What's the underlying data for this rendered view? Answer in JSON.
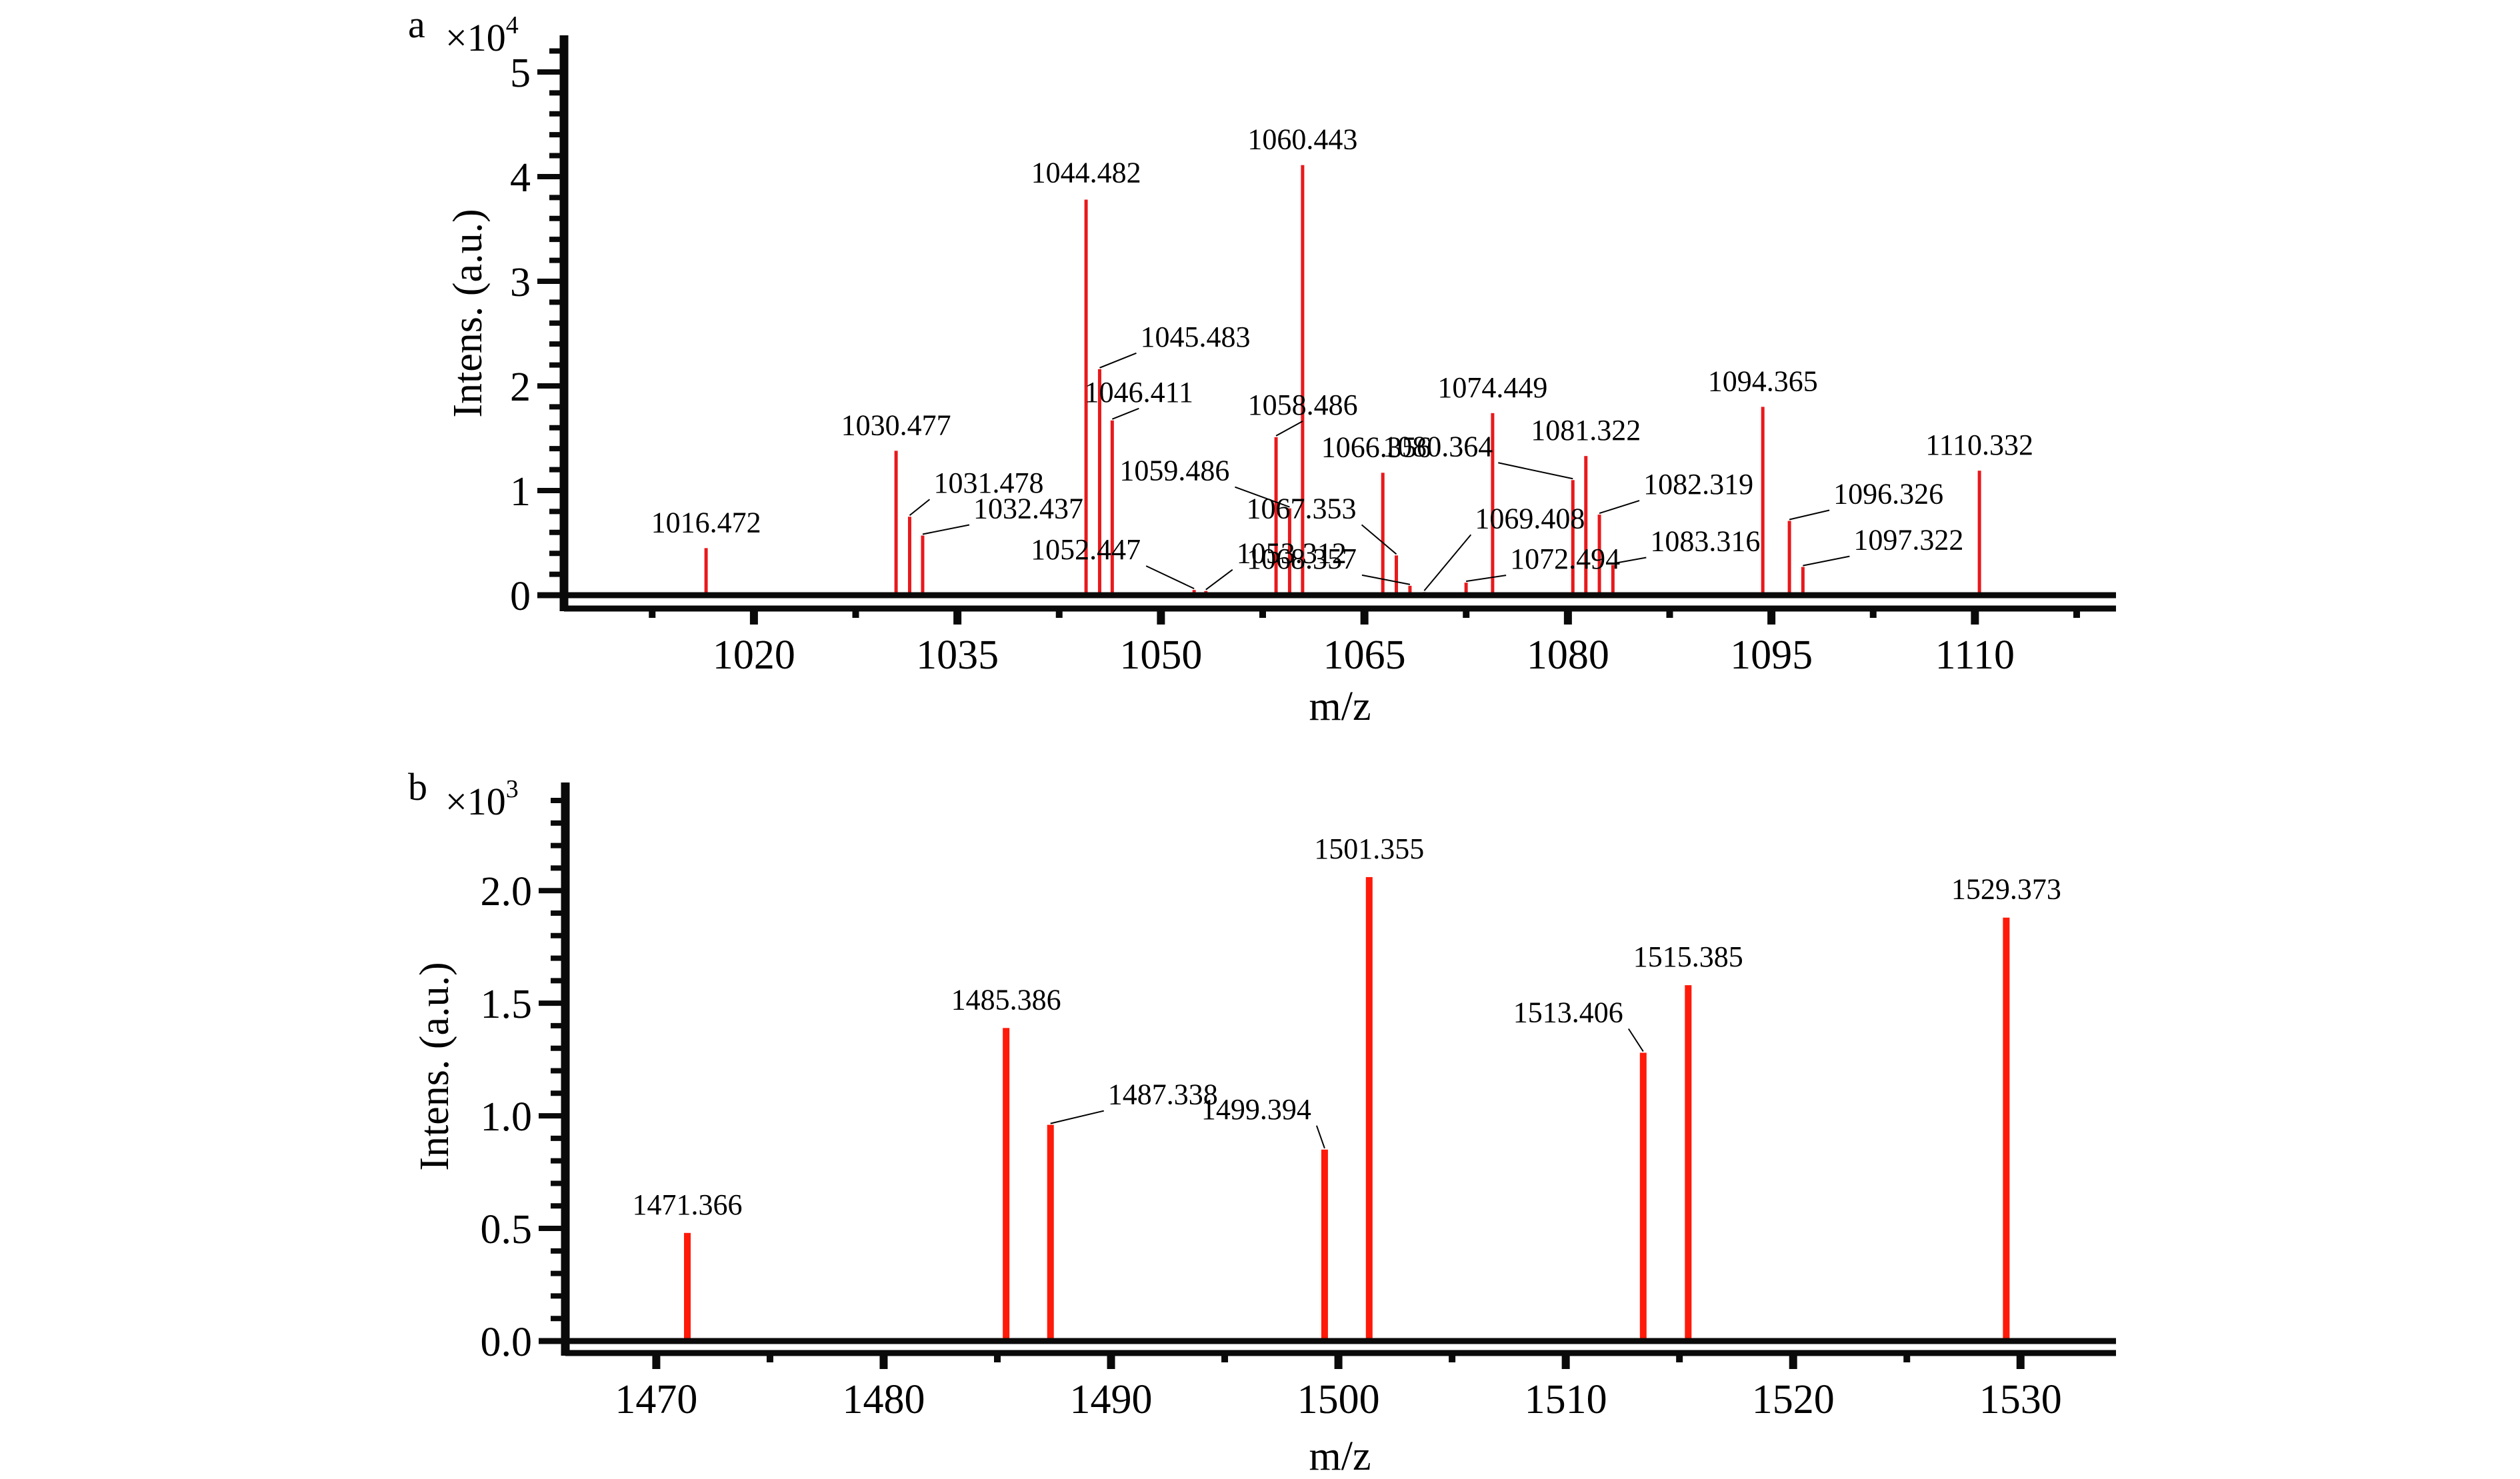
{
  "chart_data": [
    {
      "panel": "a",
      "type": "bar",
      "title": "",
      "xlabel": "m/z",
      "ylabel": "Intens. (a.u.)",
      "y_multiplier": "×10",
      "y_multiplier_exp": "4",
      "xlim": [
        1006,
        1120.4
      ],
      "ylim": [
        0,
        5.35
      ],
      "xticks": [
        1020,
        1035,
        1050,
        1065,
        1080,
        1095,
        1110
      ],
      "xtick_labels": [
        "1020",
        "1035",
        "1050",
        "1065",
        "1080",
        "1095",
        "1110"
      ],
      "x_minor_step": 7.5,
      "yticks": [
        0,
        1,
        2,
        3,
        4,
        5
      ],
      "ytick_labels": [
        "0",
        "1",
        "2",
        "3",
        "4",
        "5"
      ],
      "y_minor_step": 0.2,
      "grid": false,
      "bar_color": "#e8191c",
      "peaks": [
        {
          "mz": 1016.472,
          "label": "1016.472",
          "intensity": 0.45
        },
        {
          "mz": 1030.477,
          "label": "1030.477",
          "intensity": 1.38
        },
        {
          "mz": 1031.478,
          "label": "1031.478",
          "intensity": 0.75
        },
        {
          "mz": 1032.437,
          "label": "1032.437",
          "intensity": 0.57
        },
        {
          "mz": 1044.482,
          "label": "1044.482",
          "intensity": 3.78
        },
        {
          "mz": 1045.483,
          "label": "1045.483",
          "intensity": 2.16
        },
        {
          "mz": 1046.411,
          "label": "1046.411",
          "intensity": 1.67
        },
        {
          "mz": 1052.447,
          "label": "1052.447",
          "intensity": 0.05
        },
        {
          "mz": 1053.312,
          "label": "1053.312",
          "intensity": 0.04
        },
        {
          "mz": 1058.486,
          "label": "1058.486",
          "intensity": 1.51
        },
        {
          "mz": 1059.486,
          "label": "1059.486",
          "intensity": 0.83
        },
        {
          "mz": 1060.443,
          "label": "1060.443",
          "intensity": 4.11
        },
        {
          "mz": 1066.356,
          "label": "1066.356",
          "intensity": 1.17
        },
        {
          "mz": 1067.353,
          "label": "1067.353",
          "intensity": 0.38
        },
        {
          "mz": 1068.357,
          "label": "1068.357",
          "intensity": 0.09
        },
        {
          "mz": 1069.408,
          "label": "1069.408",
          "intensity": 0.03
        },
        {
          "mz": 1072.494,
          "label": "1072.494",
          "intensity": 0.12
        },
        {
          "mz": 1074.449,
          "label": "1074.449",
          "intensity": 1.74
        },
        {
          "mz": 1080.364,
          "label": "1080.364",
          "intensity": 1.1
        },
        {
          "mz": 1081.322,
          "label": "1081.322",
          "intensity": 1.33
        },
        {
          "mz": 1082.319,
          "label": "1082.319",
          "intensity": 0.77
        },
        {
          "mz": 1083.316,
          "label": "1083.316",
          "intensity": 0.29
        },
        {
          "mz": 1094.365,
          "label": "1094.365",
          "intensity": 1.8
        },
        {
          "mz": 1096.326,
          "label": "1096.326",
          "intensity": 0.71
        },
        {
          "mz": 1097.322,
          "label": "1097.322",
          "intensity": 0.27
        },
        {
          "mz": 1110.332,
          "label": "1110.332",
          "intensity": 1.19
        }
      ]
    },
    {
      "panel": "b",
      "type": "bar",
      "title": "",
      "xlabel": "m/z",
      "ylabel": "Intens. (a.u.)",
      "y_multiplier": "×10",
      "y_multiplier_exp": "3",
      "xlim": [
        1466.0,
        1534.2
      ],
      "ylim": [
        0,
        2.48
      ],
      "xticks": [
        1470,
        1480,
        1490,
        1500,
        1510,
        1520,
        1530
      ],
      "xtick_labels": [
        "1470",
        "1480",
        "1490",
        "1500",
        "1510",
        "1520",
        "1530"
      ],
      "x_minor_step": 5,
      "yticks": [
        0,
        0.5,
        1.0,
        1.5,
        2.0
      ],
      "ytick_labels": [
        "0.0",
        "0.5",
        "1.0",
        "1.5",
        "2.0"
      ],
      "y_minor_step": 0.1,
      "grid": false,
      "bar_color": "#ff1a0a",
      "peaks": [
        {
          "mz": 1471.366,
          "label": "1471.366",
          "intensity": 0.48
        },
        {
          "mz": 1485.386,
          "label": "1485.386",
          "intensity": 1.39
        },
        {
          "mz": 1487.338,
          "label": "1487.338",
          "intensity": 0.96
        },
        {
          "mz": 1499.394,
          "label": "1499.394",
          "intensity": 0.85
        },
        {
          "mz": 1501.355,
          "label": "1501.355",
          "intensity": 2.06
        },
        {
          "mz": 1513.406,
          "label": "1513.406",
          "intensity": 1.28
        },
        {
          "mz": 1515.385,
          "label": "1515.385",
          "intensity": 1.58
        },
        {
          "mz": 1529.373,
          "label": "1529.373",
          "intensity": 1.88
        }
      ]
    }
  ]
}
